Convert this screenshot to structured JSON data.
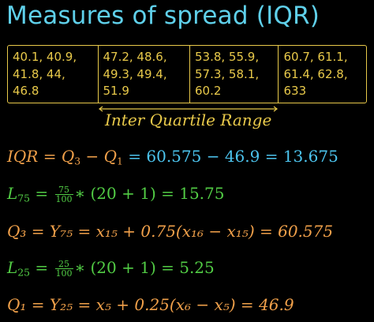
{
  "title": "Measures of spread (IQR)",
  "quartiles": [
    {
      "lines": [
        "40.1, 40.9,",
        "41.8, 44,",
        "46.8"
      ]
    },
    {
      "lines": [
        "47.2, 48.6,",
        "49.3, 49.4,",
        "51.9"
      ]
    },
    {
      "lines": [
        "53.8, 55.9,",
        "57.3, 58.1,",
        "60.2"
      ]
    },
    {
      "lines": [
        "60.7, 61.1,",
        "61.4, 62.8,",
        "633"
      ]
    }
  ],
  "range_label": "Inter Quartile Range",
  "iqr": {
    "lhs": "IQR = Q",
    "q3_sub": "3",
    "minus": " − Q",
    "q1_sub": "1",
    "result": " = 60.575 − 46.9 = 13.675"
  },
  "l75": {
    "var": "L",
    "sub": "75",
    "eq": " = ",
    "frac_num": "75",
    "frac_den": "100",
    "rest": "∗ (20 + 1) = 15.75"
  },
  "q3_formula": {
    "text": "Q₃ = Y₇₅ = x₁₅ + 0.75(x₁₆ − x₁₅) = 60.575"
  },
  "l25": {
    "var": "L",
    "sub": "25",
    "eq": " = ",
    "frac_num": "25",
    "frac_den": "100",
    "rest": "∗ (20 + 1) = 5.25"
  },
  "q1_formula": {
    "text": "Q₁ = Y₂₅ = x₅ + 0.25(x₆ − x₅) = 46.9"
  },
  "colors": {
    "title": "#5fd0ea",
    "box": "#e8c94a",
    "orange": "#f0a04a",
    "cyan": "#4cc4ee",
    "green": "#52cd45"
  }
}
